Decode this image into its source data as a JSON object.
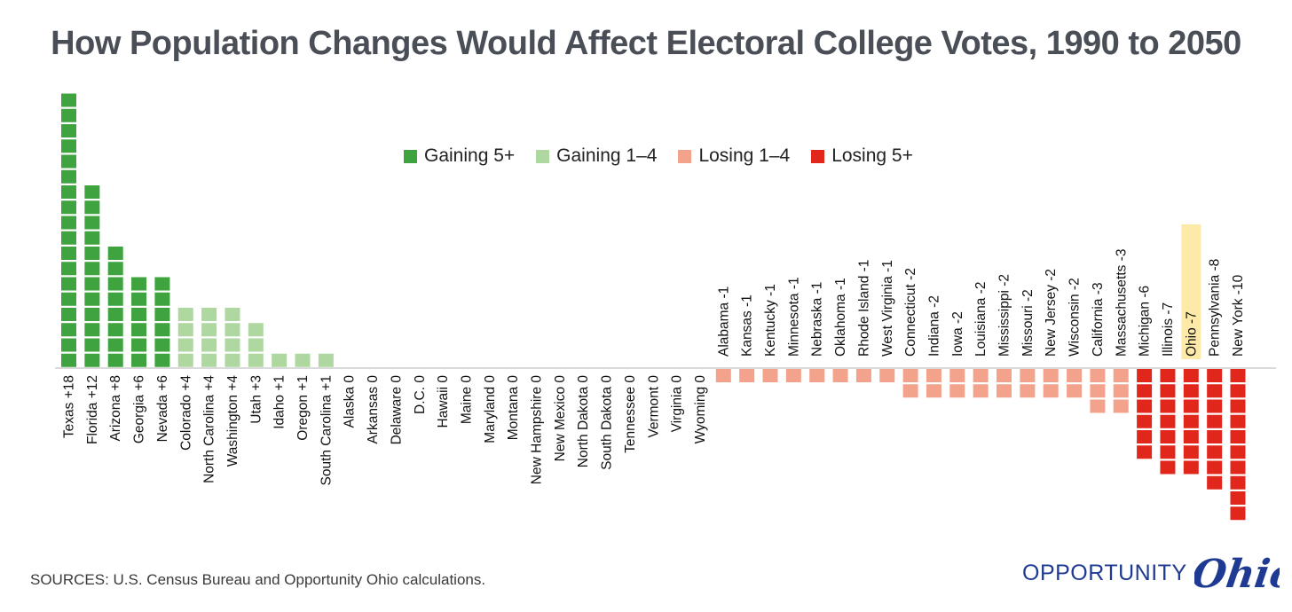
{
  "title": "How Population Changes Would Affect Electoral College Votes, 1990 to 2050",
  "source": "SOURCES: U.S. Census Bureau and Opportunity Ohio calculations.",
  "logo": {
    "word": "OPPORTUNITY",
    "script": "Ohio"
  },
  "colors": {
    "gain5": "#3fa33f",
    "gain14": "#aed8a0",
    "lose14": "#f3a38c",
    "lose5": "#e1261c",
    "highlight": "#fdeaa8",
    "title": "#4a4f57",
    "logo": "#1f3a93"
  },
  "legend": [
    {
      "label": "Gaining 5+",
      "color": "#3fa33f"
    },
    {
      "label": "Gaining 1–4",
      "color": "#aed8a0"
    },
    {
      "label": "Losing 1–4",
      "color": "#f3a38c"
    },
    {
      "label": "Losing 5+",
      "color": "#e1261c"
    }
  ],
  "chart_data": {
    "type": "bar",
    "title": "How Population Changes Would Affect Electoral College Votes, 1990 to 2050",
    "unit": "electoral votes (each square = 1 vote)",
    "highlight": "Ohio -7",
    "categories": [
      "Texas +18",
      "Florida +12",
      "Arizona +8",
      "Georgia +6",
      "Nevada +6",
      "Colorado +4",
      "North Carolina +4",
      "Washington +4",
      "Utah +3",
      "Idaho +1",
      "Oregon +1",
      "South Carolina +1",
      "Alaska 0",
      "Arkansas 0",
      "Delaware 0",
      "D.C. 0",
      "Hawaii 0",
      "Maine 0",
      "Maryland 0",
      "Montana 0",
      "New Hampshire 0",
      "New Mexico 0",
      "North Dakota 0",
      "South Dakota 0",
      "Tennessee 0",
      "Vermont 0",
      "Virginia 0",
      "Wyoming 0",
      "Alabama -1",
      "Kansas -1",
      "Kentucky -1",
      "Minnesota -1",
      "Nebraska -1",
      "Oklahoma -1",
      "Rhode Island -1",
      "West Virginia -1",
      "Connecticut -2",
      "Indiana -2",
      "Iowa -2",
      "Louisiana -2",
      "Mississippi -2",
      "Missouri -2",
      "New Jersey -2",
      "Wisconsin -2",
      "California -3",
      "Massachusetts -3",
      "Michigan -6",
      "Illinois -7",
      "Ohio -7",
      "Pennsylvania -8",
      "New York -10"
    ],
    "values": [
      18,
      12,
      8,
      6,
      6,
      4,
      4,
      4,
      3,
      1,
      1,
      1,
      0,
      0,
      0,
      0,
      0,
      0,
      0,
      0,
      0,
      0,
      0,
      0,
      0,
      0,
      0,
      0,
      -1,
      -1,
      -1,
      -1,
      -1,
      -1,
      -1,
      -1,
      -2,
      -2,
      -2,
      -2,
      -2,
      -2,
      -2,
      -2,
      -3,
      -3,
      -6,
      -7,
      -7,
      -8,
      -10
    ]
  }
}
